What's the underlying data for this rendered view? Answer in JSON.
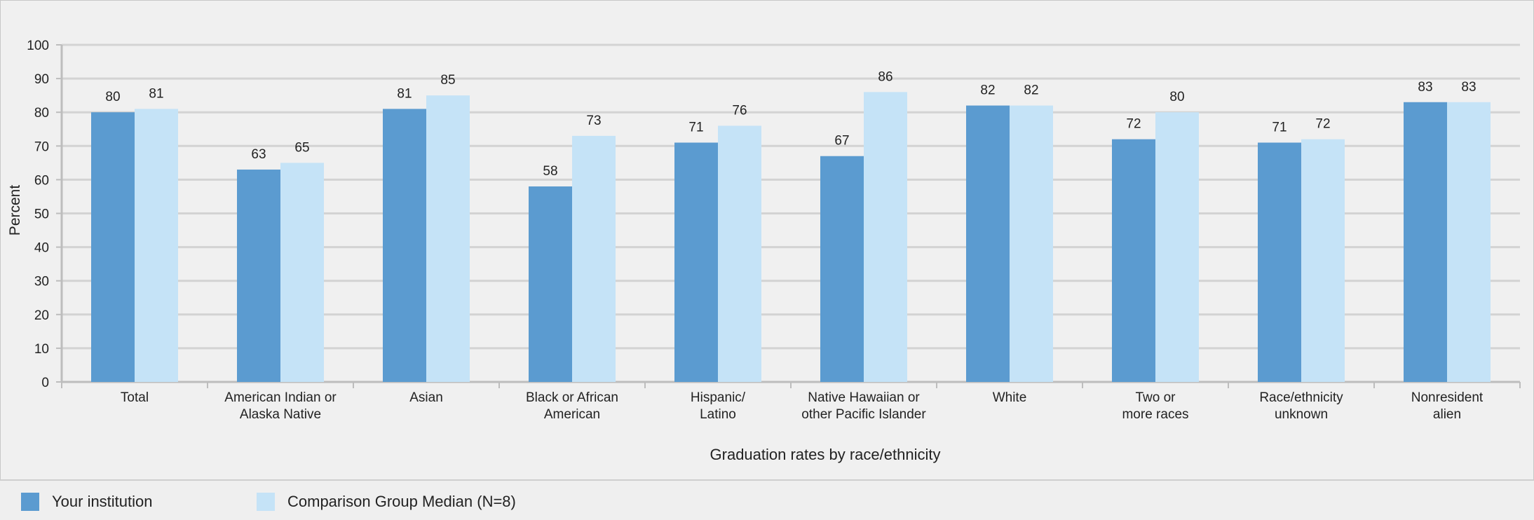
{
  "chart_data": {
    "type": "bar",
    "title": "",
    "xlabel": "Graduation rates by race/ethnicity",
    "ylabel": "Percent",
    "ylim": [
      0,
      100
    ],
    "yticks": [
      0,
      10,
      20,
      30,
      40,
      50,
      60,
      70,
      80,
      90,
      100
    ],
    "grid": true,
    "categories": [
      [
        "Total"
      ],
      [
        "American Indian or",
        "Alaska Native"
      ],
      [
        "Asian"
      ],
      [
        "Black or African",
        "American"
      ],
      [
        "Hispanic/",
        "Latino"
      ],
      [
        "Native Hawaiian or",
        "other Pacific Islander"
      ],
      [
        "White"
      ],
      [
        "Two or",
        "more races"
      ],
      [
        "Race/ethnicity",
        "unknown"
      ],
      [
        "Nonresident",
        "alien"
      ]
    ],
    "series": [
      {
        "name": "Your institution",
        "color": "#5b9bd0",
        "values": [
          80,
          63,
          81,
          58,
          71,
          67,
          82,
          72,
          71,
          83
        ]
      },
      {
        "name": "Comparison Group Median (N=8)",
        "color": "#c5e3f7",
        "values": [
          81,
          65,
          85,
          73,
          76,
          86,
          82,
          80,
          72,
          83
        ]
      }
    ],
    "legend_position": "bottom-left"
  },
  "colors": {
    "background": "#f0f0f0",
    "grid": "#d3d3d3",
    "axis": "#bdbdbd",
    "text": "#222222"
  }
}
